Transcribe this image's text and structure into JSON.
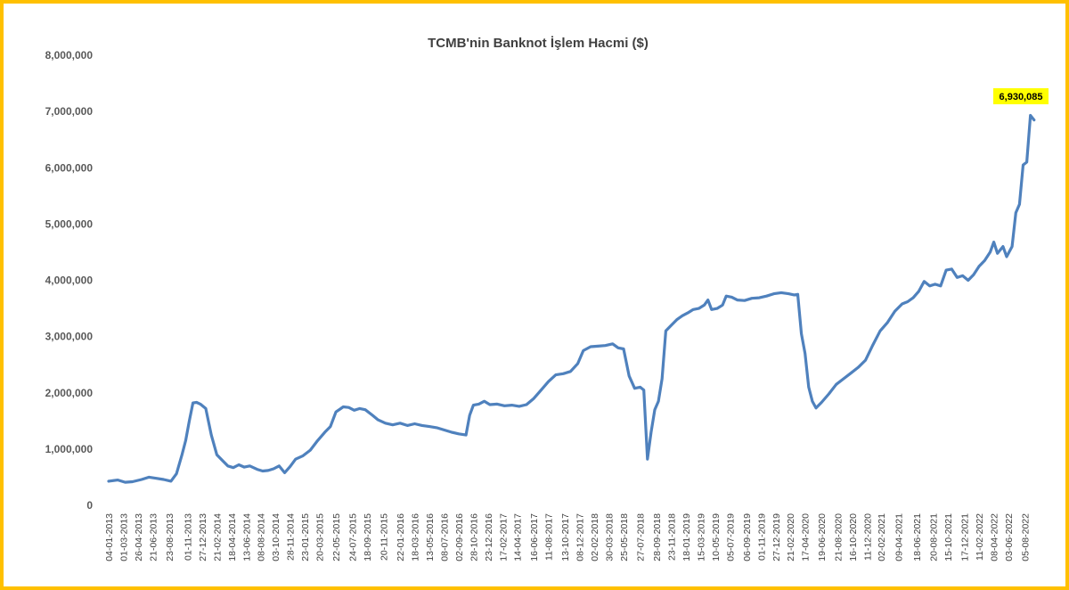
{
  "chart_data": {
    "type": "line",
    "title": "TCMB'nin Banknot İşlem Hacmi ($)",
    "xlabel": "",
    "ylabel": "",
    "ylim": [
      0,
      8000000
    ],
    "yticks": [
      "0",
      "1,000,000",
      "2,000,000",
      "3,000,000",
      "4,000,000",
      "5,000,000",
      "6,000,000",
      "7,000,000",
      "8,000,000"
    ],
    "yticks_values": [
      0,
      1000000,
      2000000,
      3000000,
      4000000,
      5000000,
      6000000,
      7000000,
      8000000
    ],
    "xlim": [
      "2013-01-04",
      "2022-09-30"
    ],
    "grid": false,
    "legend": "none",
    "line_color": "#4f81bd",
    "xticks": [
      "04-01-2013",
      "01-03-2013",
      "26-04-2013",
      "21-06-2013",
      "23-08-2013",
      "01-11-2013",
      "27-12-2013",
      "21-02-2014",
      "18-04-2014",
      "13-06-2014",
      "08-08-2014",
      "03-10-2014",
      "28-11-2014",
      "23-01-2015",
      "20-03-2015",
      "22-05-2015",
      "24-07-2015",
      "18-09-2015",
      "20-11-2015",
      "22-01-2016",
      "18-03-2016",
      "13-05-2016",
      "08-07-2016",
      "02-09-2016",
      "28-10-2016",
      "23-12-2016",
      "17-02-2017",
      "14-04-2017",
      "16-06-2017",
      "11-08-2017",
      "13-10-2017",
      "08-12-2017",
      "02-02-2018",
      "30-03-2018",
      "25-05-2018",
      "27-07-2018",
      "28-09-2018",
      "23-11-2018",
      "18-01-2019",
      "15-03-2019",
      "10-05-2019",
      "05-07-2019",
      "06-09-2019",
      "01-11-2019",
      "27-12-2019",
      "21-02-2020",
      "17-04-2020",
      "19-06-2020",
      "21-08-2020",
      "16-10-2020",
      "11-12-2020",
      "02-02-2021",
      "09-04-2021",
      "18-06-2021",
      "20-08-2021",
      "15-10-2021",
      "17-12-2021",
      "11-02-2022",
      "08-04-2022",
      "03-06-2022",
      "05-08-2022"
    ],
    "series": [
      {
        "name": "",
        "points": [
          [
            "2013-01-04",
            430000
          ],
          [
            "2013-02-08",
            450000
          ],
          [
            "2013-03-08",
            410000
          ],
          [
            "2013-04-05",
            420000
          ],
          [
            "2013-05-10",
            460000
          ],
          [
            "2013-06-07",
            500000
          ],
          [
            "2013-07-05",
            480000
          ],
          [
            "2013-08-02",
            460000
          ],
          [
            "2013-08-30",
            430000
          ],
          [
            "2013-09-20",
            560000
          ],
          [
            "2013-10-11",
            900000
          ],
          [
            "2013-10-25",
            1150000
          ],
          [
            "2013-11-08",
            1500000
          ],
          [
            "2013-11-22",
            1820000
          ],
          [
            "2013-12-06",
            1830000
          ],
          [
            "2013-12-20",
            1800000
          ],
          [
            "2014-01-10",
            1720000
          ],
          [
            "2014-01-31",
            1250000
          ],
          [
            "2014-02-21",
            900000
          ],
          [
            "2014-03-14",
            800000
          ],
          [
            "2014-04-04",
            700000
          ],
          [
            "2014-04-25",
            670000
          ],
          [
            "2014-05-16",
            720000
          ],
          [
            "2014-06-06",
            680000
          ],
          [
            "2014-06-27",
            700000
          ],
          [
            "2014-07-25",
            640000
          ],
          [
            "2014-08-15",
            610000
          ],
          [
            "2014-09-05",
            620000
          ],
          [
            "2014-09-26",
            650000
          ],
          [
            "2014-10-17",
            700000
          ],
          [
            "2014-11-07",
            580000
          ],
          [
            "2014-11-28",
            690000
          ],
          [
            "2014-12-19",
            820000
          ],
          [
            "2015-01-16",
            880000
          ],
          [
            "2015-02-13",
            980000
          ],
          [
            "2015-03-13",
            1150000
          ],
          [
            "2015-04-10",
            1300000
          ],
          [
            "2015-05-01",
            1400000
          ],
          [
            "2015-05-22",
            1660000
          ],
          [
            "2015-06-19",
            1750000
          ],
          [
            "2015-07-10",
            1740000
          ],
          [
            "2015-07-31",
            1690000
          ],
          [
            "2015-08-21",
            1720000
          ],
          [
            "2015-09-11",
            1700000
          ],
          [
            "2015-10-09",
            1600000
          ],
          [
            "2015-10-30",
            1520000
          ],
          [
            "2015-11-27",
            1460000
          ],
          [
            "2015-12-25",
            1430000
          ],
          [
            "2016-01-22",
            1460000
          ],
          [
            "2016-02-19",
            1420000
          ],
          [
            "2016-03-18",
            1450000
          ],
          [
            "2016-04-15",
            1420000
          ],
          [
            "2016-05-13",
            1400000
          ],
          [
            "2016-06-10",
            1380000
          ],
          [
            "2016-07-08",
            1340000
          ],
          [
            "2016-08-05",
            1300000
          ],
          [
            "2016-09-02",
            1270000
          ],
          [
            "2016-09-30",
            1250000
          ],
          [
            "2016-10-14",
            1600000
          ],
          [
            "2016-10-28",
            1780000
          ],
          [
            "2016-11-18",
            1800000
          ],
          [
            "2016-12-09",
            1850000
          ],
          [
            "2016-12-30",
            1790000
          ],
          [
            "2017-01-27",
            1800000
          ],
          [
            "2017-02-24",
            1770000
          ],
          [
            "2017-03-24",
            1780000
          ],
          [
            "2017-04-21",
            1760000
          ],
          [
            "2017-05-19",
            1790000
          ],
          [
            "2017-06-16",
            1900000
          ],
          [
            "2017-07-14",
            2050000
          ],
          [
            "2017-08-11",
            2200000
          ],
          [
            "2017-09-08",
            2320000
          ],
          [
            "2017-10-06",
            2340000
          ],
          [
            "2017-11-03",
            2380000
          ],
          [
            "2017-12-01",
            2520000
          ],
          [
            "2017-12-22",
            2750000
          ],
          [
            "2018-01-19",
            2820000
          ],
          [
            "2018-02-16",
            2830000
          ],
          [
            "2018-03-16",
            2840000
          ],
          [
            "2018-04-13",
            2870000
          ],
          [
            "2018-05-04",
            2800000
          ],
          [
            "2018-05-25",
            2780000
          ],
          [
            "2018-06-15",
            2300000
          ],
          [
            "2018-07-06",
            2080000
          ],
          [
            "2018-07-27",
            2100000
          ],
          [
            "2018-08-10",
            2050000
          ],
          [
            "2018-08-24",
            820000
          ],
          [
            "2018-09-07",
            1300000
          ],
          [
            "2018-09-21",
            1700000
          ],
          [
            "2018-10-05",
            1850000
          ],
          [
            "2018-10-19",
            2250000
          ],
          [
            "2018-11-02",
            3100000
          ],
          [
            "2018-11-23",
            3200000
          ],
          [
            "2018-12-14",
            3300000
          ],
          [
            "2019-01-04",
            3370000
          ],
          [
            "2019-01-25",
            3420000
          ],
          [
            "2019-02-15",
            3480000
          ],
          [
            "2019-03-08",
            3500000
          ],
          [
            "2019-03-29",
            3560000
          ],
          [
            "2019-04-12",
            3650000
          ],
          [
            "2019-04-26",
            3480000
          ],
          [
            "2019-05-17",
            3500000
          ],
          [
            "2019-06-07",
            3560000
          ],
          [
            "2019-06-21",
            3720000
          ],
          [
            "2019-07-12",
            3700000
          ],
          [
            "2019-08-02",
            3650000
          ],
          [
            "2019-08-30",
            3640000
          ],
          [
            "2019-09-27",
            3680000
          ],
          [
            "2019-10-25",
            3690000
          ],
          [
            "2019-11-22",
            3720000
          ],
          [
            "2019-12-20",
            3760000
          ],
          [
            "2020-01-17",
            3780000
          ],
          [
            "2020-02-14",
            3760000
          ],
          [
            "2020-03-06",
            3740000
          ],
          [
            "2020-03-20",
            3750000
          ],
          [
            "2020-04-03",
            3050000
          ],
          [
            "2020-04-17",
            2700000
          ],
          [
            "2020-05-01",
            2100000
          ],
          [
            "2020-05-15",
            1850000
          ],
          [
            "2020-05-29",
            1730000
          ],
          [
            "2020-06-19",
            1830000
          ],
          [
            "2020-07-17",
            1980000
          ],
          [
            "2020-08-14",
            2150000
          ],
          [
            "2020-09-11",
            2250000
          ],
          [
            "2020-10-09",
            2350000
          ],
          [
            "2020-11-06",
            2450000
          ],
          [
            "2020-12-04",
            2580000
          ],
          [
            "2021-01-01",
            2850000
          ],
          [
            "2021-01-29",
            3100000
          ],
          [
            "2021-02-26",
            3250000
          ],
          [
            "2021-03-26",
            3450000
          ],
          [
            "2021-04-23",
            3580000
          ],
          [
            "2021-05-14",
            3620000
          ],
          [
            "2021-06-04",
            3690000
          ],
          [
            "2021-06-25",
            3800000
          ],
          [
            "2021-07-16",
            3980000
          ],
          [
            "2021-08-06",
            3900000
          ],
          [
            "2021-08-27",
            3930000
          ],
          [
            "2021-09-17",
            3900000
          ],
          [
            "2021-10-08",
            4180000
          ],
          [
            "2021-10-29",
            4200000
          ],
          [
            "2021-11-19",
            4050000
          ],
          [
            "2021-12-10",
            4080000
          ],
          [
            "2021-12-31",
            4000000
          ],
          [
            "2022-01-21",
            4100000
          ],
          [
            "2022-02-11",
            4250000
          ],
          [
            "2022-03-04",
            4350000
          ],
          [
            "2022-03-25",
            4500000
          ],
          [
            "2022-04-08",
            4680000
          ],
          [
            "2022-04-22",
            4480000
          ],
          [
            "2022-05-13",
            4600000
          ],
          [
            "2022-05-27",
            4420000
          ],
          [
            "2022-06-17",
            4600000
          ],
          [
            "2022-07-01",
            5200000
          ],
          [
            "2022-07-15",
            5350000
          ],
          [
            "2022-07-29",
            6050000
          ],
          [
            "2022-08-12",
            6100000
          ],
          [
            "2022-08-26",
            6930085
          ],
          [
            "2022-09-09",
            6850000
          ]
        ]
      }
    ],
    "annotations": [
      {
        "text": "6,930,085",
        "x": "2022-08-26",
        "y": 6930085,
        "background": "#ffff00"
      }
    ]
  }
}
